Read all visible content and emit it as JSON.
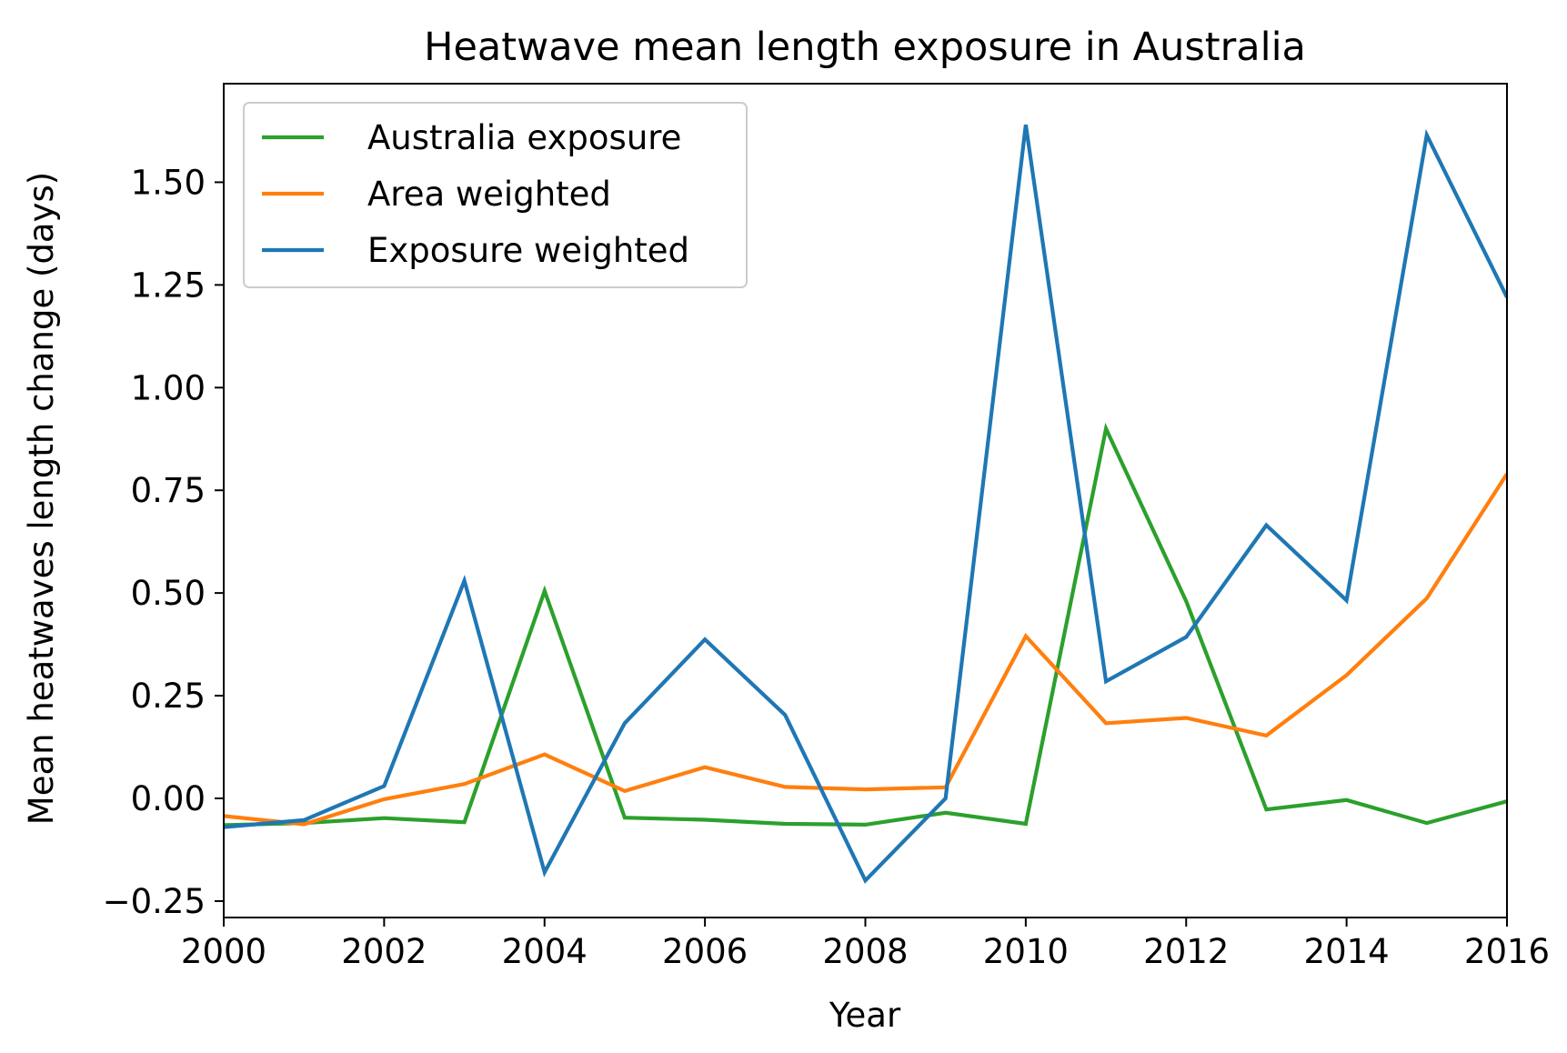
{
  "chart_data": {
    "type": "line",
    "title": "Heatwave mean length exposure in Australia",
    "xlabel": "Year",
    "ylabel": "Mean heatwaves length change (days)",
    "xlim": [
      2000,
      2016
    ],
    "ylim": [
      -0.29,
      1.74
    ],
    "x": [
      2000,
      2001,
      2002,
      2003,
      2004,
      2005,
      2006,
      2007,
      2008,
      2009,
      2010,
      2011,
      2012,
      2013,
      2014,
      2015,
      2016
    ],
    "x_ticks": [
      2000,
      2002,
      2004,
      2006,
      2008,
      2010,
      2012,
      2014,
      2016
    ],
    "x_tick_labels": [
      "2000",
      "2002",
      "2004",
      "2006",
      "2008",
      "2010",
      "2012",
      "2014",
      "2016"
    ],
    "y_ticks": [
      -0.25,
      0.0,
      0.25,
      0.5,
      0.75,
      1.0,
      1.25,
      1.5
    ],
    "y_tick_labels": [
      "−0.25",
      "0.00",
      "0.25",
      "0.50",
      "0.75",
      "1.00",
      "1.25",
      "1.50"
    ],
    "legend_position": "top-left",
    "series": [
      {
        "name": "Australia exposure",
        "color": "#2ca02c",
        "values": [
          -0.065,
          -0.06,
          -0.048,
          -0.058,
          0.505,
          -0.047,
          -0.052,
          -0.062,
          -0.064,
          -0.035,
          -0.062,
          0.9,
          0.48,
          -0.027,
          -0.004,
          -0.06,
          -0.007
        ]
      },
      {
        "name": "Area weighted",
        "color": "#ff7f0e",
        "values": [
          -0.043,
          -0.063,
          -0.002,
          0.035,
          0.107,
          0.018,
          0.076,
          0.028,
          0.022,
          0.027,
          0.395,
          0.183,
          0.196,
          0.153,
          0.3,
          0.487,
          0.79
        ]
      },
      {
        "name": "Exposure weighted",
        "color": "#1f77b4",
        "values": [
          -0.07,
          -0.053,
          0.03,
          0.53,
          -0.18,
          0.183,
          0.387,
          0.203,
          -0.2,
          0.0,
          1.64,
          0.285,
          0.393,
          0.665,
          0.482,
          1.615,
          1.22
        ]
      }
    ]
  }
}
